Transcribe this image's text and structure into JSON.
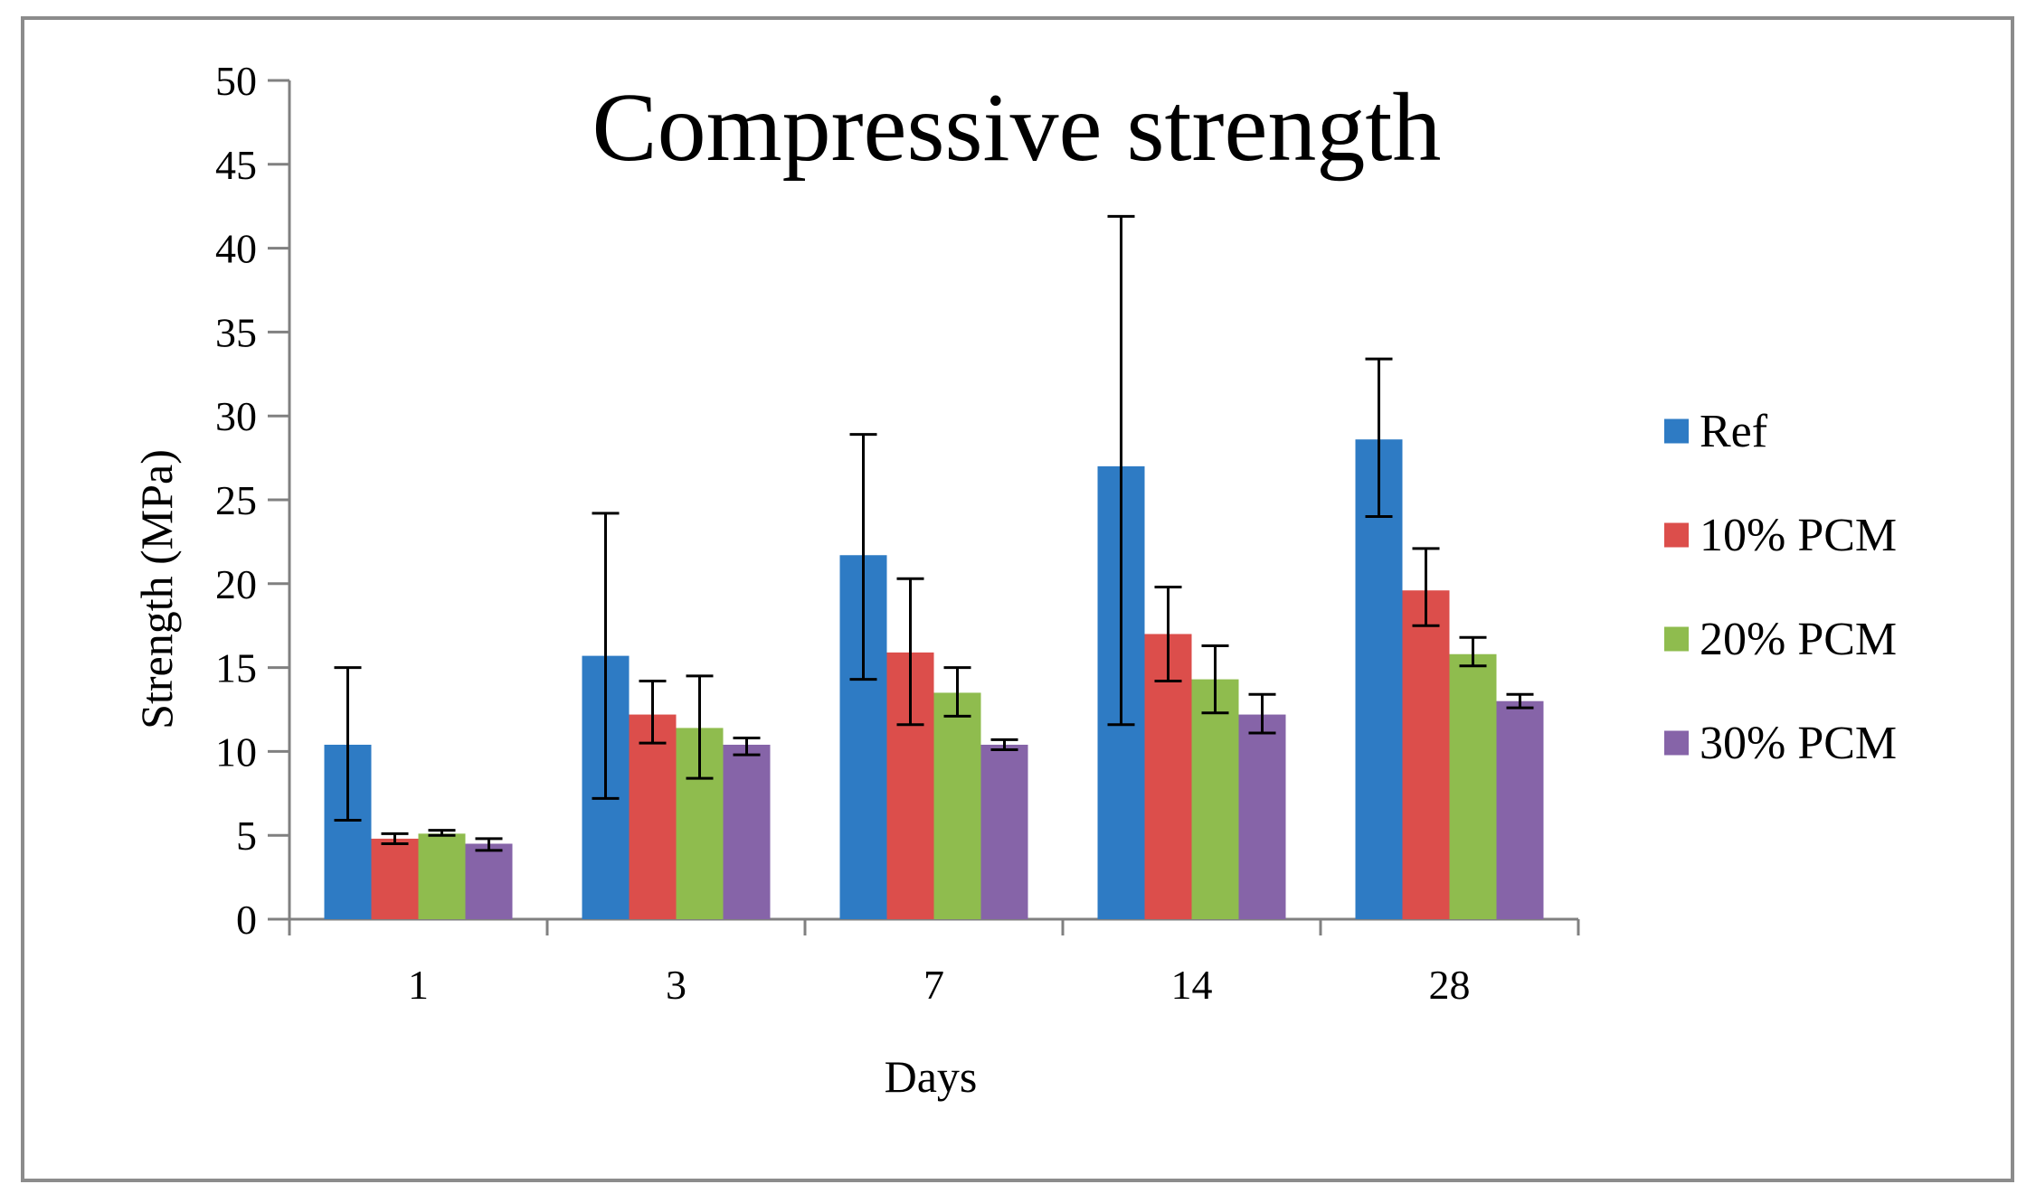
{
  "chart_data": {
    "type": "bar",
    "title": "Compressive strength",
    "xlabel": "Days",
    "ylabel": "Strength (MPa)",
    "ylim": [
      0,
      50
    ],
    "yticks": [
      "0",
      "5",
      "10",
      "15",
      "20",
      "25",
      "30",
      "35",
      "40",
      "45",
      "50"
    ],
    "categories": [
      "1",
      "3",
      "7",
      "14",
      "28"
    ],
    "grid": false,
    "legend_position": "right",
    "series": [
      {
        "name": "Ref",
        "color": "#2e7bc4",
        "values": [
          10.4,
          15.7,
          21.7,
          27.0,
          28.6
        ],
        "err_low": [
          5.9,
          7.2,
          14.3,
          11.6,
          24.0
        ],
        "err_high": [
          15.0,
          24.2,
          28.9,
          41.9,
          33.4
        ]
      },
      {
        "name": "10% PCM",
        "color": "#dc4e4b",
        "values": [
          4.8,
          12.2,
          15.9,
          17.0,
          19.6
        ],
        "err_low": [
          4.5,
          10.5,
          11.6,
          14.2,
          17.5
        ],
        "err_high": [
          5.1,
          14.2,
          20.3,
          19.8,
          22.1
        ]
      },
      {
        "name": "20% PCM",
        "color": "#8fbc4e",
        "values": [
          5.1,
          11.4,
          13.5,
          14.3,
          15.8
        ],
        "err_low": [
          5.0,
          8.4,
          12.1,
          12.3,
          15.1
        ],
        "err_high": [
          5.3,
          14.5,
          15.0,
          16.3,
          16.8
        ]
      },
      {
        "name": "30% PCM",
        "color": "#8664a8",
        "values": [
          4.5,
          10.4,
          10.4,
          12.2,
          13.0
        ],
        "err_low": [
          4.1,
          9.8,
          10.1,
          11.1,
          12.6
        ],
        "err_high": [
          4.8,
          10.8,
          10.7,
          13.4,
          13.4
        ]
      }
    ]
  }
}
